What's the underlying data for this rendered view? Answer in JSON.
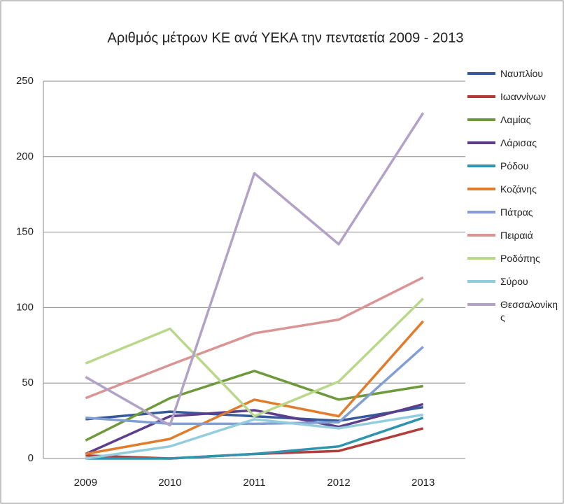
{
  "chart_data": {
    "type": "line",
    "title": "Αριθμός μέτρων ΚΕ ανά ΥΕΚΑ την πενταετία 2009 - 2013",
    "categories": [
      "2009",
      "2010",
      "2011",
      "2012",
      "2013"
    ],
    "ylim": [
      0,
      250
    ],
    "yticks": [
      0,
      50,
      100,
      150,
      200,
      250
    ],
    "grid": true,
    "series": [
      {
        "name": "Ναυπλίου",
        "color": "#35599a",
        "values": [
          26,
          31,
          28,
          25,
          34
        ]
      },
      {
        "name": "Ιωαννίνων",
        "color": "#b23c3a",
        "values": [
          2,
          0,
          3,
          5,
          20
        ]
      },
      {
        "name": "Λαμίας",
        "color": "#6f9a3b",
        "values": [
          12,
          40,
          58,
          39,
          48
        ]
      },
      {
        "name": "Λάρισας",
        "color": "#5c3e8a",
        "values": [
          3,
          28,
          32,
          21,
          36
        ]
      },
      {
        "name": "Ρόδου",
        "color": "#2f95ae",
        "values": [
          0,
          0,
          3,
          8,
          27
        ]
      },
      {
        "name": "Κοζάνης",
        "color": "#e07c2b",
        "values": [
          3,
          13,
          39,
          28,
          91
        ]
      },
      {
        "name": "Πάτρας",
        "color": "#829fd4",
        "values": [
          27,
          23,
          23,
          24,
          74
        ]
      },
      {
        "name": "Πειραιά",
        "color": "#d99594",
        "values": [
          40,
          62,
          83,
          92,
          120
        ]
      },
      {
        "name": "Ροδόπης",
        "color": "#bad88b",
        "values": [
          63,
          86,
          28,
          51,
          106
        ]
      },
      {
        "name": "Σύρου",
        "color": "#93cddd",
        "values": [
          0,
          8,
          26,
          20,
          29
        ]
      },
      {
        "name": "Θεσσαλονίκης",
        "color": "#b3a2c7",
        "values": [
          54,
          22,
          189,
          142,
          229
        ]
      }
    ]
  }
}
